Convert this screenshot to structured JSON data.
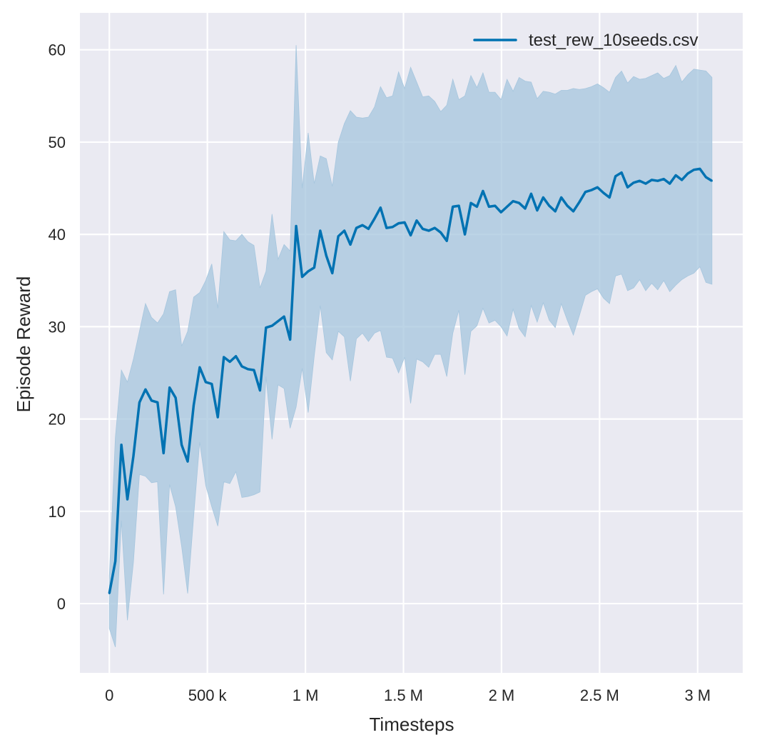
{
  "chart_data": {
    "type": "line",
    "title": "",
    "xlabel": "Timesteps",
    "ylabel": "Episode Reward",
    "xlim": [
      -150000,
      3230000
    ],
    "ylim": [
      -7.5,
      64
    ],
    "grid": true,
    "background": "#eaeaf2",
    "legend_position": "top-right",
    "x_ticks": [
      0,
      500000,
      1000000,
      1500000,
      2000000,
      2500000,
      3000000
    ],
    "x_tick_labels": [
      "0",
      "500 k",
      "1 M",
      "1.5 M",
      "2 M",
      "2.5 M",
      "3 M"
    ],
    "y_ticks": [
      0,
      10,
      20,
      30,
      40,
      50,
      60
    ],
    "y_tick_labels": [
      "0",
      "10",
      "20",
      "30",
      "40",
      "50",
      "60"
    ],
    "x": [
      0,
      30730,
      61460,
      92190,
      122920,
      153650,
      184380,
      215110,
      245840,
      276570,
      307300,
      338030,
      368760,
      399490,
      430220,
      460950,
      491680,
      522410,
      553140,
      583870,
      614600,
      645330,
      676060,
      706790,
      737520,
      768250,
      798980,
      829710,
      860440,
      891170,
      921900,
      952630,
      983360,
      1014090,
      1044820,
      1075550,
      1106280,
      1137010,
      1167740,
      1198470,
      1229200,
      1259930,
      1290660,
      1321390,
      1352120,
      1382850,
      1413580,
      1444310,
      1475040,
      1505770,
      1536500,
      1567230,
      1597960,
      1628690,
      1659420,
      1690150,
      1720880,
      1751610,
      1782340,
      1813070,
      1843800,
      1874530,
      1905260,
      1935990,
      1966720,
      1997450,
      2028180,
      2058910,
      2089640,
      2120370,
      2151100,
      2181830,
      2212560,
      2243290,
      2274020,
      2304750,
      2335480,
      2366210,
      2396940,
      2427670,
      2458400,
      2489130,
      2519860,
      2550590,
      2581320,
      2612050,
      2642780,
      2673510,
      2704240,
      2734970,
      2765700,
      2796430,
      2827160,
      2857890,
      2888620,
      2919350,
      2950080,
      2980810,
      3011540,
      3042270,
      3073000
    ],
    "series": [
      {
        "name": "test_rew_10seeds.csv",
        "color": "#0072b2",
        "band_color": "#a6c6de",
        "values": [
          1.1,
          4.6,
          17.2,
          11.3,
          16,
          21.8,
          23.2,
          22,
          21.8,
          16.3,
          23.4,
          22.3,
          17.2,
          15.4,
          21.5,
          25.6,
          24,
          23.8,
          20.2,
          26.7,
          26.2,
          26.8,
          25.7,
          25.4,
          25.3,
          23.1,
          29.9,
          30.1,
          30.6,
          31.1,
          28.6,
          40.9,
          35.4,
          36,
          36.4,
          40.4,
          37.7,
          35.8,
          39.8,
          40.4,
          38.9,
          40.7,
          41,
          40.6,
          41.7,
          42.9,
          40.7,
          40.8,
          41.2,
          41.3,
          39.9,
          41.5,
          40.6,
          40.4,
          40.7,
          40.2,
          39.3,
          43,
          43.1,
          40,
          43.4,
          43,
          44.7,
          43,
          43.1,
          42.4,
          43,
          43.6,
          43.4,
          42.8,
          44.4,
          42.6,
          44,
          43.1,
          42.5,
          44,
          43.1,
          42.5,
          43.5,
          44.6,
          44.8,
          45.1,
          44.5,
          44,
          46.3,
          46.7,
          45.1,
          45.6,
          45.8,
          45.5,
          45.9,
          45.8,
          46,
          45.5,
          46.4,
          45.9,
          46.6,
          47,
          47.1,
          46.2,
          45.8
        ],
        "upper": [
          3,
          18,
          25.3,
          24,
          26.5,
          29.5,
          32.5,
          31,
          30.4,
          31.4,
          33.8,
          34,
          27.9,
          29.5,
          33.2,
          33.7,
          35,
          36.8,
          32,
          40.3,
          39.4,
          39.3,
          40,
          39.2,
          38.8,
          34.2,
          36,
          42.2,
          37.3,
          38.9,
          38.2,
          60.5,
          45,
          51,
          45.5,
          48.5,
          48.2,
          45.2,
          50,
          52,
          53.4,
          52.7,
          52.6,
          52.7,
          53.8,
          56,
          54.8,
          55,
          57.6,
          55.8,
          58.1,
          56.5,
          54.9,
          55,
          54.4,
          53.3,
          54,
          56.8,
          54.6,
          55,
          57.2,
          55.9,
          57.5,
          55.4,
          55.4,
          54.6,
          56.8,
          55.5,
          57,
          56.6,
          56.5,
          54.7,
          55.5,
          55.4,
          55.2,
          55.6,
          55.6,
          55.8,
          55.7,
          55.8,
          56,
          56.3,
          55.9,
          55.4,
          57,
          57.7,
          56.4,
          57.1,
          56.8,
          56.9,
          57.2,
          57.5,
          56.9,
          57.2,
          58.3,
          56.5,
          57.3,
          57.9,
          57.8,
          57.7,
          57
        ],
        "lower": [
          -2.7,
          -4.7,
          9,
          -1.8,
          4.5,
          14,
          13.8,
          13.1,
          13.2,
          1,
          12.9,
          10.5,
          6.2,
          1.1,
          9.5,
          17.5,
          12.8,
          10.5,
          8.4,
          13.2,
          13,
          14.3,
          11.5,
          11.6,
          11.8,
          12.1,
          24.6,
          17.8,
          23.7,
          23.3,
          19,
          21.3,
          25.5,
          20.7,
          26.8,
          32.3,
          27.2,
          26.4,
          29.5,
          28.9,
          24.1,
          28.7,
          29.3,
          28.4,
          29.3,
          29.6,
          26.7,
          26.6,
          25,
          26.7,
          21.7,
          26.5,
          26.2,
          25.6,
          27,
          27,
          24.6,
          29.3,
          31.8,
          24.8,
          29.5,
          30.1,
          32,
          30.4,
          30.7,
          30,
          29,
          31.9,
          29.8,
          28.9,
          32.3,
          30.5,
          32.6,
          30.7,
          29.9,
          32.5,
          30.7,
          29.1,
          31.2,
          33.4,
          33.8,
          34.1,
          33.1,
          32.5,
          35.5,
          35.7,
          33.9,
          34.2,
          35.1,
          33.9,
          34.7,
          34,
          35,
          33.8,
          34.5,
          35.1,
          35.5,
          35.8,
          36.5,
          34.8,
          34.6
        ]
      }
    ]
  }
}
